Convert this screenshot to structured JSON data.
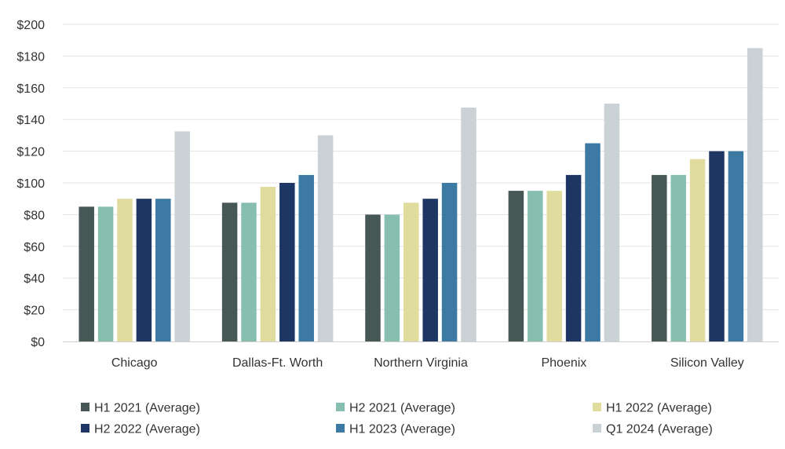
{
  "chart_data": {
    "type": "bar",
    "categories": [
      "Chicago",
      "Dallas-Ft. Worth",
      "Northern Virginia",
      "Phoenix",
      "Silicon Valley"
    ],
    "series": [
      {
        "name": "H1 2021 (Average)",
        "color": "#465756",
        "values": [
          85,
          87.5,
          80,
          95,
          105
        ]
      },
      {
        "name": "H2 2021 (Average)",
        "color": "#86bfb0",
        "values": [
          85,
          87.5,
          80,
          95,
          105
        ]
      },
      {
        "name": "H1 2022 (Average)",
        "color": "#e0dc9e",
        "values": [
          90,
          97.5,
          87.5,
          95,
          115
        ]
      },
      {
        "name": "H2 2022 (Average)",
        "color": "#1e3663",
        "values": [
          90,
          100,
          90,
          105,
          120
        ]
      },
      {
        "name": "H1 2023 (Average)",
        "color": "#3d7aa3",
        "values": [
          90,
          105,
          100,
          125,
          120
        ]
      },
      {
        "name": "Q1 2024 (Average)",
        "color": "#cbd2d6",
        "values": [
          132.5,
          130,
          147.5,
          150,
          185
        ]
      }
    ],
    "yticks": [
      "$0",
      "$20",
      "$40",
      "$60",
      "$80",
      "$100",
      "$120",
      "$140",
      "$160",
      "$180",
      "$200"
    ],
    "ylim": [
      0,
      200
    ],
    "title": "",
    "xlabel": "",
    "ylabel": "",
    "grid": true,
    "legend_position": "bottom"
  }
}
